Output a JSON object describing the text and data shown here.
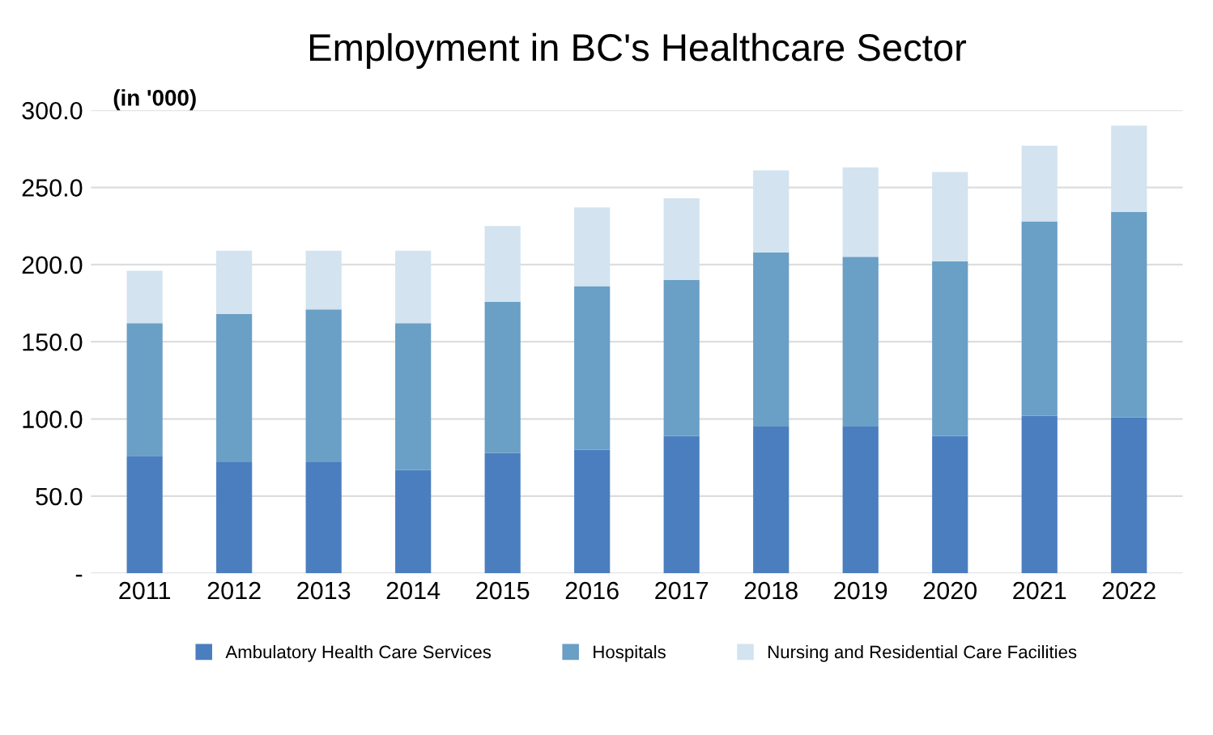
{
  "chart_data": {
    "type": "bar",
    "title": "Employment in BC's Healthcare Sector",
    "annotations": [
      "(in '000)"
    ],
    "categories": [
      "2011",
      "2012",
      "2013",
      "2014",
      "2015",
      "2016",
      "2017",
      "2018",
      "2019",
      "2020",
      "2021",
      "2022"
    ],
    "stacked": true,
    "series": [
      {
        "name": "Ambulatory Health Care Services",
        "color": "#4a7ebf",
        "values": [
          76,
          72,
          72,
          67,
          78,
          80,
          89,
          95,
          95,
          89,
          102,
          101
        ]
      },
      {
        "name": "Hospitals",
        "color": "#6a9fc6",
        "values": [
          86,
          96,
          99,
          95,
          98,
          106,
          101,
          113,
          110,
          113,
          126,
          133
        ]
      },
      {
        "name": "Nursing and Residential Care Facilities",
        "color": "#d3e3ef",
        "values": [
          34,
          41,
          38,
          47,
          49,
          51,
          53,
          53,
          58,
          58,
          49,
          56
        ]
      }
    ],
    "ylim": [
      0,
      300
    ],
    "yticks": [
      {
        "value": 0,
        "label": "-"
      },
      {
        "value": 50,
        "label": "50.0"
      },
      {
        "value": 100,
        "label": "100.0"
      },
      {
        "value": 150,
        "label": "150.0"
      },
      {
        "value": 200,
        "label": "200.0"
      },
      {
        "value": 250,
        "label": "250.0"
      },
      {
        "value": 300,
        "label": "300.0"
      }
    ],
    "grid": "y",
    "legend": "bottom"
  }
}
